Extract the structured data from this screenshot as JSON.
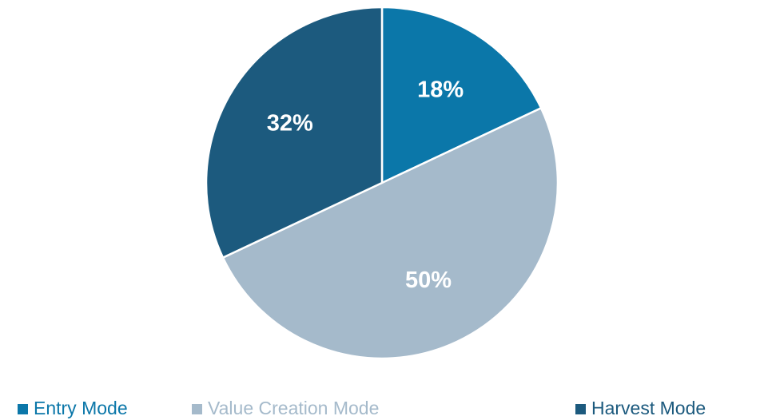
{
  "chart_data": {
    "type": "pie",
    "categories": [
      "Entry Mode",
      "Value Creation Mode",
      "Harvest Mode"
    ],
    "values": [
      18,
      50,
      32
    ],
    "value_labels": [
      "18%",
      "50%",
      "32%"
    ],
    "colors": [
      "#0b77a9",
      "#a5bacb",
      "#1c5a7e"
    ],
    "legend": "bottom"
  }
}
